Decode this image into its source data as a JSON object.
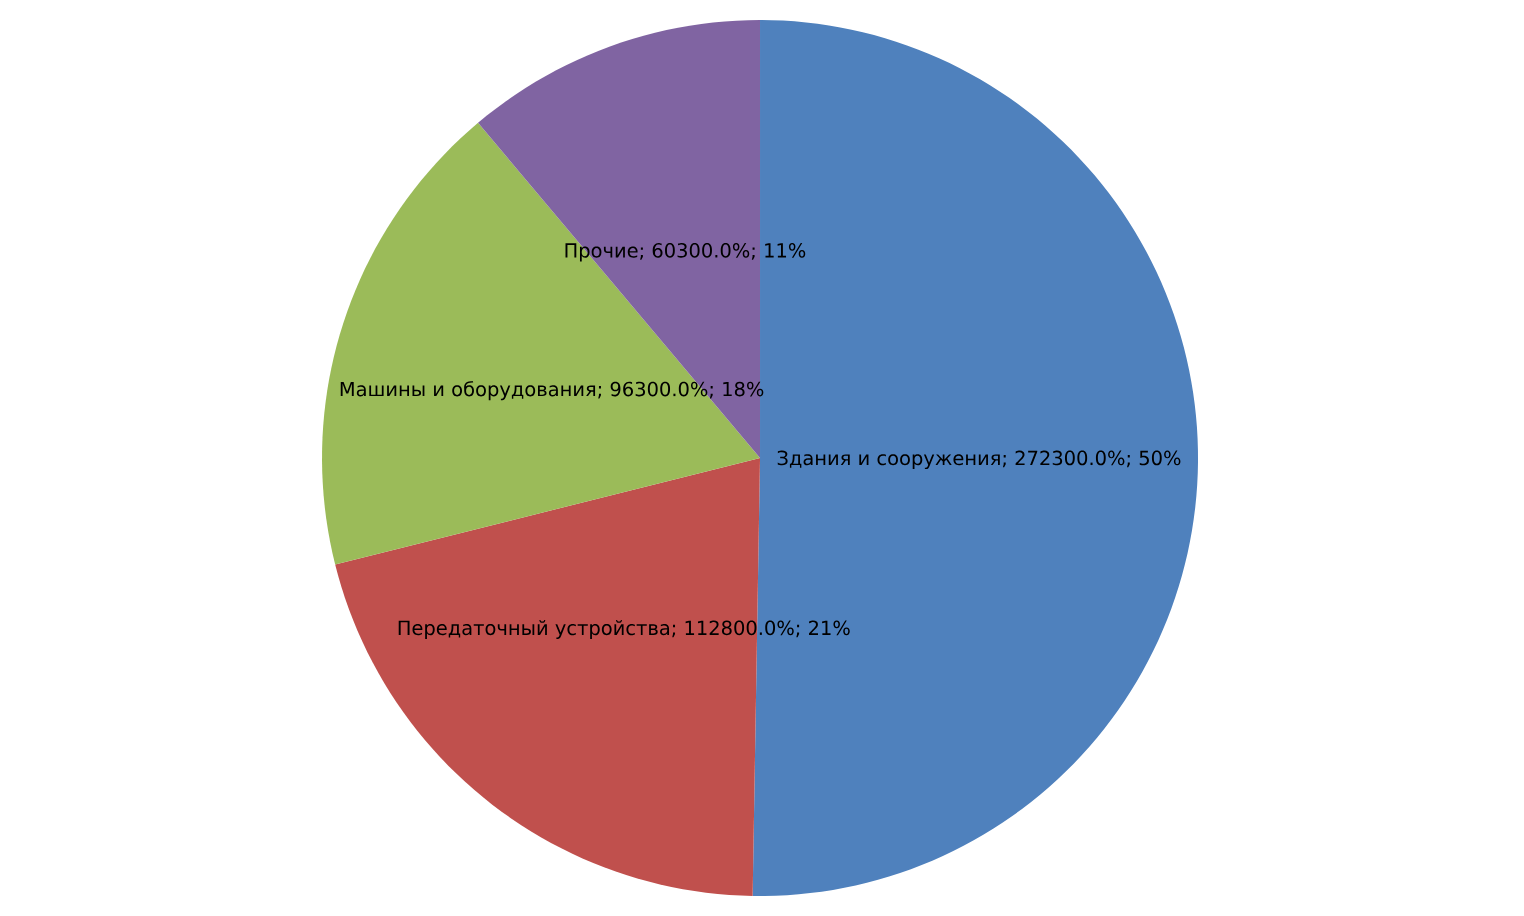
{
  "chart_data": {
    "type": "pie",
    "categories": [
      "Здания и сооружения",
      "Передаточный устройства",
      "Машины и оборудования",
      "Прочие"
    ],
    "values": [
      272300,
      112800,
      96300,
      60300
    ],
    "value_labels": [
      "; 272300.0%; 50%",
      "; 112800.0%; 21%",
      "; 96300.0%; 18%",
      "; 60300.0%; 11%"
    ],
    "colors": [
      "#4f81bd",
      "#c0504d",
      "#9bbb59",
      "#8064a2"
    ]
  }
}
